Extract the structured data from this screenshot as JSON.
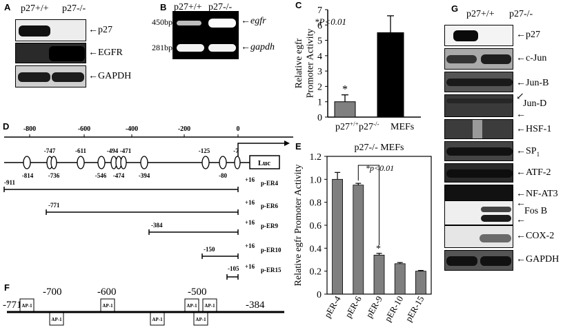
{
  "panelA": {
    "letter": "A",
    "lanes": [
      "p27+/+",
      "p27-/-"
    ],
    "blots": [
      "p27",
      "EGFR",
      "GAPDH"
    ]
  },
  "panelB": {
    "letter": "B",
    "lanes": [
      "p27+/+",
      "p27-/-"
    ],
    "rows": [
      {
        "size": "450bp",
        "gene": "egfr"
      },
      {
        "size": "281bp",
        "gene": "gapdh"
      }
    ]
  },
  "panelC": {
    "letter": "C",
    "note": "*P<0.01",
    "star": "*",
    "unit": "MEFs"
  },
  "panelD": {
    "letter": "D",
    "scale": [
      "-800",
      "-600",
      "-400",
      "-200",
      "0"
    ],
    "top_sites": [
      "-747",
      "-611",
      "-494",
      "-471",
      "-125",
      "-7"
    ],
    "bottom_sites": [
      "-814",
      "-736",
      "-546",
      "-474",
      "-394",
      "-80"
    ],
    "luc": "Luc",
    "constructs": [
      {
        "start": "-911",
        "end": "+16",
        "name": "p-ER4"
      },
      {
        "start": "-771",
        "end": "+16",
        "name": "p-ER6"
      },
      {
        "start": "-384",
        "end": "+16",
        "name": "p-ER9"
      },
      {
        "start": "-150",
        "end": "+16",
        "name": "p-ER10"
      },
      {
        "start": "-105",
        "end": "+16",
        "name": "p-ER15"
      }
    ]
  },
  "panelE": {
    "letter": "E",
    "note": "*p<0.01",
    "star": "*"
  },
  "panelF": {
    "letter": "F",
    "left": "-771",
    "right": "-384",
    "ticks": [
      "-700",
      "-600",
      "-500"
    ],
    "box": "AP-1"
  },
  "panelG": {
    "letter": "G",
    "lanes": [
      "p27+/+",
      "p27-/-"
    ],
    "blots": [
      "p27",
      "c-Jun",
      "Jun-B",
      "Jun-D",
      "HSF-1",
      "SP",
      "ATF-2",
      "NF-AT3",
      "Fos B",
      "COX-2",
      "GAPDH"
    ],
    "sp_subscript": "1"
  },
  "chart_data": [
    {
      "type": "bar",
      "panel": "C",
      "categories": [
        "p27+/+",
        "p27-/-"
      ],
      "values": [
        1.0,
        5.5
      ],
      "errors": [
        0.45,
        1.1
      ],
      "colors": [
        "#808080",
        "#000000"
      ],
      "ylabel": "Relative egfr Promoter Activity",
      "yticks": [
        0,
        1,
        2,
        3,
        4,
        5,
        6,
        7
      ],
      "ylim": [
        0,
        7
      ]
    },
    {
      "type": "bar",
      "panel": "E",
      "title": "p27-/- MEFs",
      "categories": [
        "pER-4",
        "pER-6",
        "pER-9",
        "pER-10",
        "pER-15"
      ],
      "values": [
        1.0,
        0.95,
        0.34,
        0.265,
        0.2
      ],
      "errors": [
        0.06,
        0.015,
        0.015,
        0.01,
        0.006
      ],
      "ylabel": "Relative egfr Promoter Activity",
      "yticks": [
        "0",
        "0.2",
        "0.4",
        "0.6",
        "0.8",
        "1.0",
        "1.2"
      ],
      "ylim": [
        0,
        1.2
      ]
    }
  ]
}
